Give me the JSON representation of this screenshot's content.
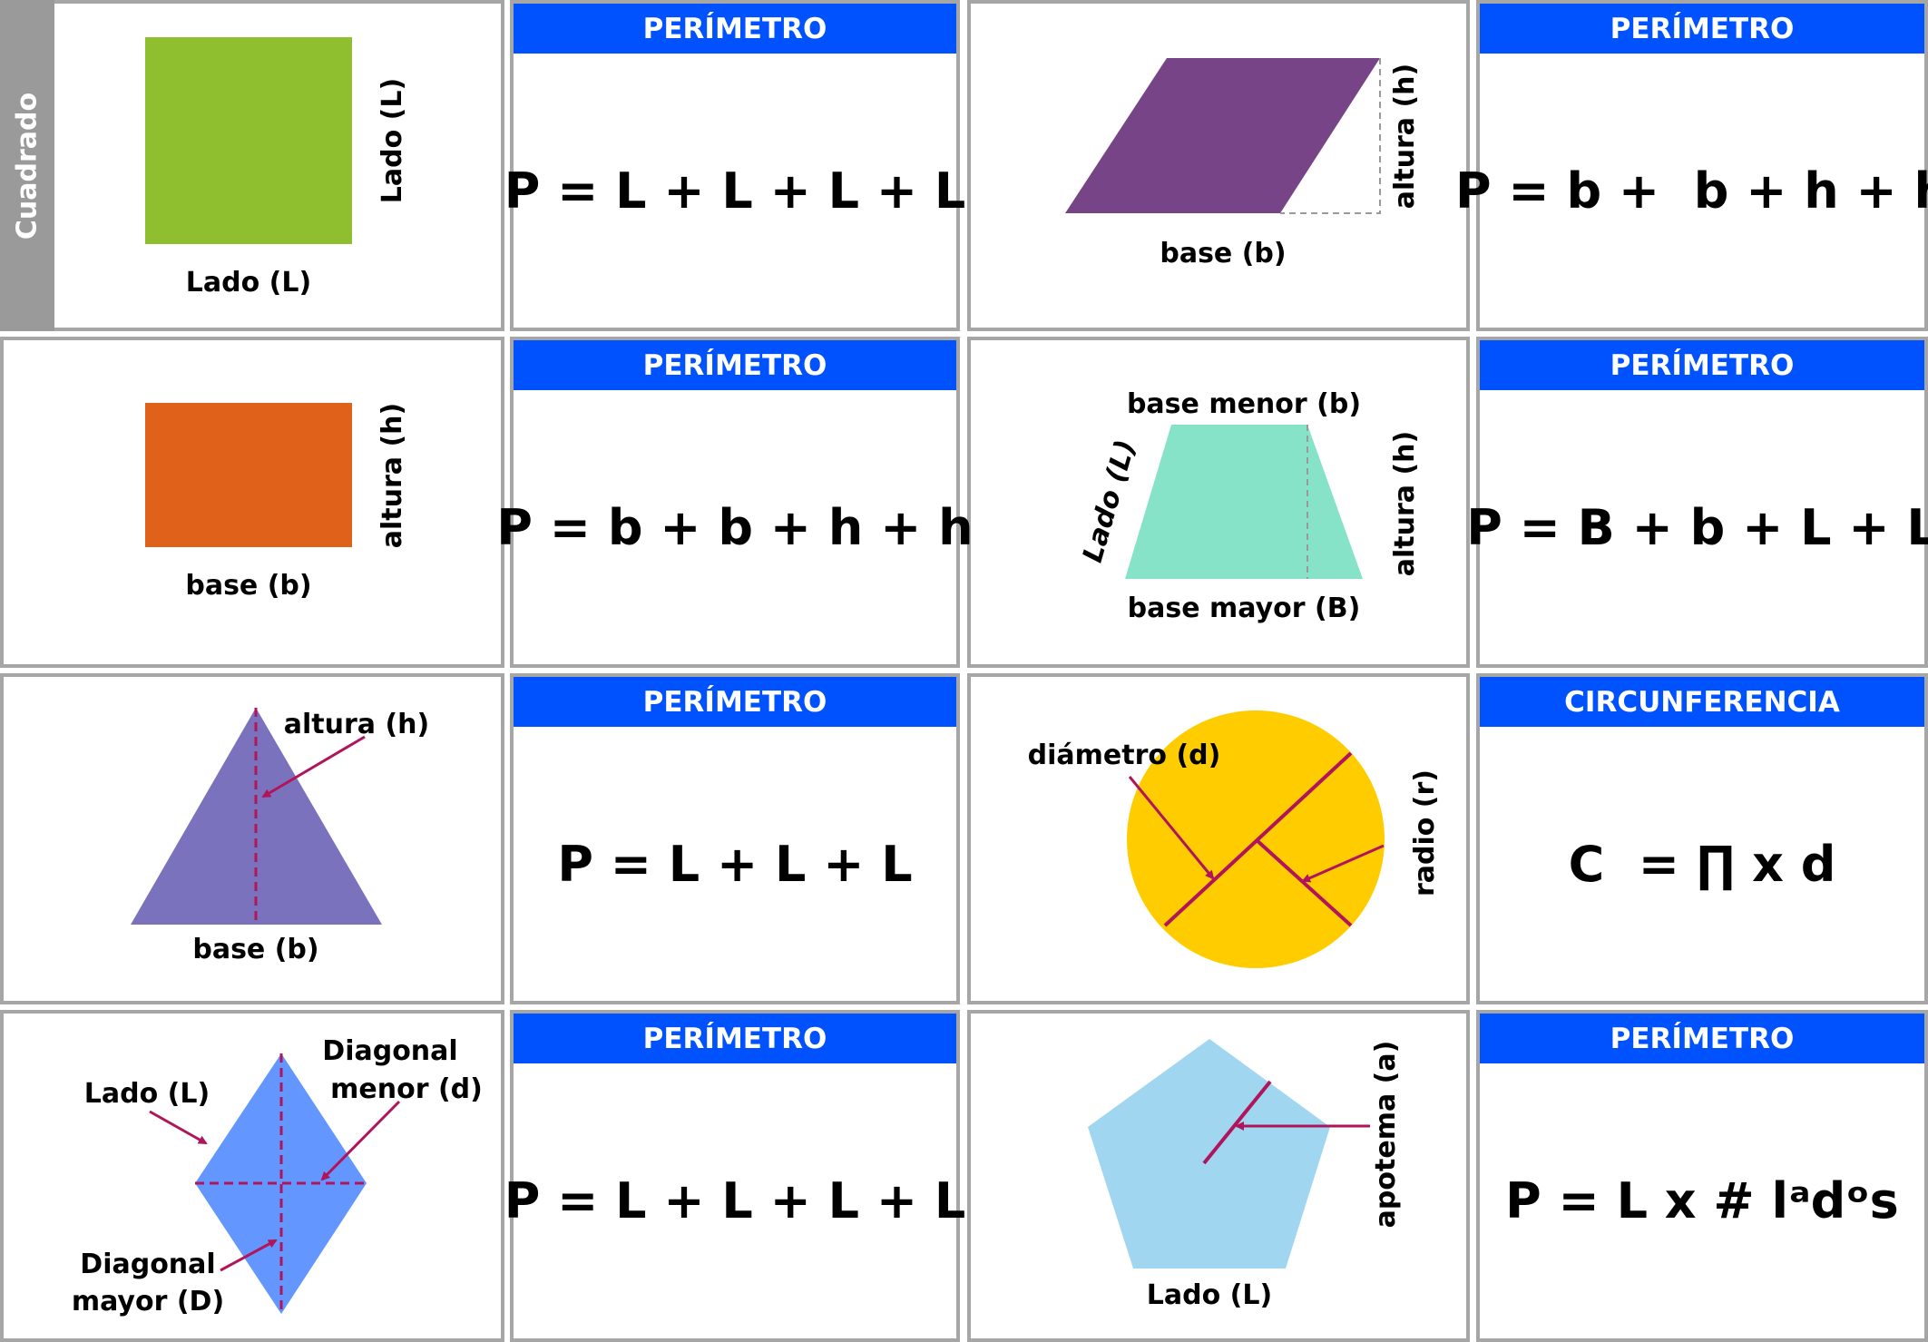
{
  "colors": {
    "sidebar": "#9a9a9a",
    "border": "#a6a6a6",
    "header": "#0052ff",
    "arrow": "#b0155c"
  },
  "cards": [
    {
      "shape": "Cuadrado",
      "header": "PERÍMETRO",
      "formula": "P = L + L + L + L",
      "labels": {
        "bottom": "Lado (L)",
        "side": "Lado (L)"
      }
    },
    {
      "shape": "Romboide",
      "header": "PERÍMETRO",
      "formula": "P = b +  b + h + h",
      "labels": {
        "bottom": "base (b)",
        "side": "altura (h)"
      }
    },
    {
      "shape": "Rectángulo",
      "header": "PERÍMETRO",
      "formula": "P = b + b + h + h",
      "labels": {
        "bottom": "base (b)",
        "side": "altura (h)"
      }
    },
    {
      "shape": "Trapecio",
      "header": "PERÍMETRO",
      "formula": "P = B + b + L + L",
      "labels": {
        "top": "base menor (b)",
        "bottom": "base mayor (B)",
        "left": "Lado (L)",
        "side": "altura (h)"
      }
    },
    {
      "shape": "Triángulo",
      "header": "PERÍMETRO",
      "formula": "P = L + L + L",
      "labels": {
        "bottom": "base (b)",
        "height": "altura (h)"
      }
    },
    {
      "shape": "Círculo",
      "header": "CIRCUNFERENCIA",
      "formula": "C  = ∏ x d",
      "labels": {
        "diameter": "diámetro (d)",
        "radius": "radio (r)"
      }
    },
    {
      "shape": "Rombo",
      "header": "PERÍMETRO",
      "formula": "P = L + L + L + L",
      "labels": {
        "side": "Lado (L)",
        "minor1": "Diagonal",
        "minor2": "menor (d)",
        "major1": "Diagonal",
        "major2": "mayor (D)"
      }
    },
    {
      "shape": "Pentágono",
      "header": "PERÍMETRO",
      "formula": "P = L x # lᵃdᵒs",
      "labels": {
        "bottom": "Lado (L)",
        "apothem": "apotema (a)"
      }
    }
  ]
}
